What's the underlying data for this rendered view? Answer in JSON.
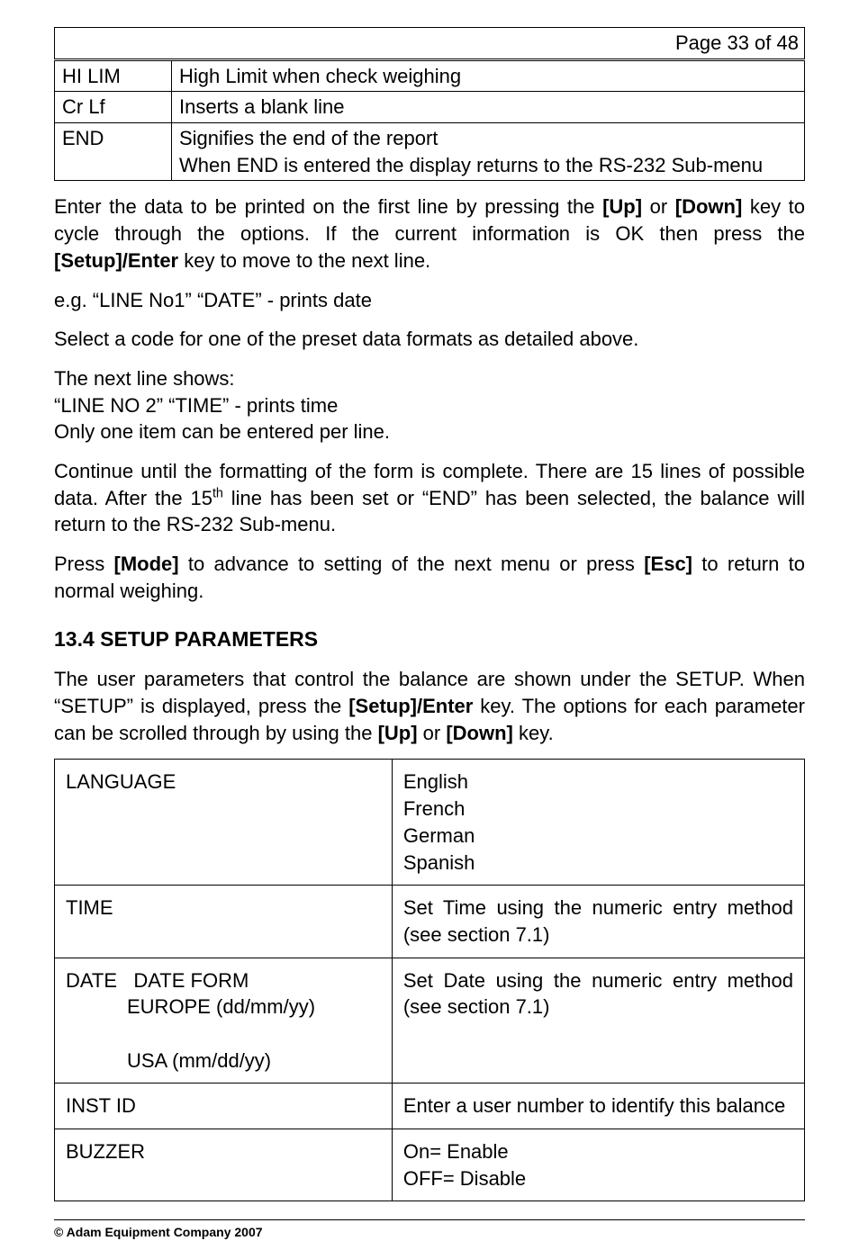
{
  "page_number": "Page 33 of 48",
  "table1": {
    "rows": [
      {
        "code": "HI LIM",
        "desc": "High Limit when check weighing"
      },
      {
        "code": "Cr Lf",
        "desc": "Inserts a blank line"
      },
      {
        "code": "END",
        "desc": "Signifies the end of the report\nWhen END is entered the display returns to the RS-232 Sub-menu"
      }
    ]
  },
  "paragraphs": {
    "p1_a": "Enter the data to be printed on the first line by pressing the ",
    "p1_b": "[Up]",
    "p1_c": " or ",
    "p1_d": "[Down]",
    "p1_e": " key to cycle through the options. If the current information is OK then press the ",
    "p1_f": "[Setup]/Enter",
    "p1_g": " key to move to the next line.",
    "p2": "e.g. “LINE No1”  “DATE” - prints date",
    "p3": "Select a code for one of the preset data formats as detailed above.",
    "p4a": "The next line shows:",
    "p4b": " “LINE NO 2”   “TIME” - prints time",
    "p4c": "Only one item can be entered per line.",
    "p5a": "Continue until the formatting of the form is complete. There are 15 lines of possible data. After the 15",
    "p5sup": "th",
    "p5b": " line has been set or “END” has been selected, the balance will return to the RS-232 Sub-menu.",
    "p6a": "Press ",
    "p6b": "[Mode]",
    "p6c": " to advance to setting of the next menu or press ",
    "p6d": "[Esc]",
    "p6e": " to return to normal weighing."
  },
  "heading": "13.4  SETUP PARAMETERS",
  "setup_intro": {
    "a": "The user parameters that control the balance are shown under the SETUP. When “SETUP” is displayed, press the ",
    "b": "[Setup]/Enter",
    "c": " key. The options for each parameter can be scrolled through by using the ",
    "d": "[Up]",
    "e": " or ",
    "f": "[Down]",
    "g": " key."
  },
  "table2": {
    "rows": [
      {
        "left_lines": [
          "LANGUAGE"
        ],
        "right": "English\nFrench\nGerman\nSpanish"
      },
      {
        "left_lines": [
          "TIME"
        ],
        "right": "Set Time using the numeric entry method (see section 7.1)"
      },
      {
        "left_main": "DATE",
        "left_sub": [
          "DATE FORM",
          "EUROPE (dd/mm/yy)",
          "USA (mm/dd/yy)"
        ],
        "right": "Set Date using the numeric entry method (see section 7.1)"
      },
      {
        "left_lines": [
          "INST ID"
        ],
        "right": "Enter a user number to identify this balance"
      },
      {
        "left_lines": [
          "BUZZER"
        ],
        "right": "On= Enable\nOFF= Disable"
      }
    ]
  },
  "footer": "© Adam Equipment Company 2007"
}
